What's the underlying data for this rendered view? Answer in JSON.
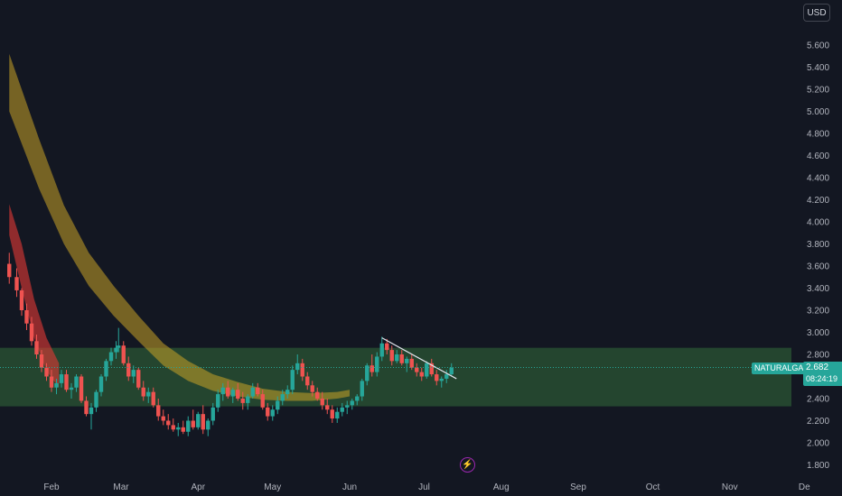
{
  "header": {
    "currency": "USD"
  },
  "symbol": {
    "name": "NATURALGAS",
    "last_price": "2.682",
    "countdown": "08:24:19"
  },
  "icons": {
    "flash": "lightning-bolt-icon"
  },
  "colors": {
    "background": "#131722",
    "up": "#26a69a",
    "down": "#ef5350",
    "zone": "#4caf50",
    "text": "#b2b5be",
    "slow_band": "#d4a020",
    "fast_band": "#e53935"
  },
  "chart_data": {
    "type": "candlestick",
    "y_ticks": [
      "1.800",
      "2.000",
      "2.200",
      "2.400",
      "2.600",
      "2.800",
      "3.000",
      "3.200",
      "3.400",
      "3.600",
      "3.800",
      "4.000",
      "4.200",
      "4.400",
      "4.600",
      "4.800",
      "5.000",
      "5.200",
      "5.400",
      "5.600"
    ],
    "x_labels": [
      {
        "label": "Feb",
        "day": 0
      },
      {
        "label": "Mar",
        "day": 28
      },
      {
        "label": "Apr",
        "day": 59
      },
      {
        "label": "May",
        "day": 89
      },
      {
        "label": "Jun",
        "day": 120
      },
      {
        "label": "Jul",
        "day": 150
      },
      {
        "label": "Aug",
        "day": 181
      },
      {
        "label": "Sep",
        "day": 212
      },
      {
        "label": "Oct",
        "day": 242
      },
      {
        "label": "Nov",
        "day": 273
      },
      {
        "label": "De",
        "day": 303
      }
    ],
    "candles": [
      [
        -17,
        3.62,
        3.72,
        3.44,
        3.5
      ],
      [
        -14,
        3.5,
        3.58,
        3.32,
        3.38
      ],
      [
        -12,
        3.38,
        3.4,
        3.15,
        3.2
      ],
      [
        -10,
        3.2,
        3.26,
        3.02,
        3.08
      ],
      [
        -8,
        3.08,
        3.14,
        2.88,
        2.92
      ],
      [
        -6,
        2.92,
        2.98,
        2.76,
        2.8
      ],
      [
        -4,
        2.8,
        2.84,
        2.64,
        2.68
      ],
      [
        -2,
        2.68,
        2.72,
        2.56,
        2.6
      ],
      [
        0,
        2.6,
        2.66,
        2.46,
        2.5
      ],
      [
        2,
        2.5,
        2.58,
        2.44,
        2.54
      ],
      [
        4,
        2.54,
        2.66,
        2.5,
        2.62
      ],
      [
        6,
        2.62,
        2.66,
        2.46,
        2.48
      ],
      [
        8,
        2.48,
        2.54,
        2.4,
        2.5
      ],
      [
        10,
        2.5,
        2.62,
        2.46,
        2.6
      ],
      [
        12,
        2.6,
        2.62,
        2.36,
        2.38
      ],
      [
        14,
        2.38,
        2.42,
        2.24,
        2.26
      ],
      [
        16,
        2.26,
        2.36,
        2.12,
        2.32
      ],
      [
        18,
        2.32,
        2.48,
        2.28,
        2.46
      ],
      [
        20,
        2.46,
        2.62,
        2.42,
        2.6
      ],
      [
        22,
        2.6,
        2.76,
        2.56,
        2.74
      ],
      [
        24,
        2.74,
        2.86,
        2.7,
        2.82
      ],
      [
        26,
        2.82,
        2.92,
        2.76,
        2.86
      ],
      [
        27,
        2.86,
        3.04,
        2.82,
        2.88
      ],
      [
        29,
        2.88,
        2.92,
        2.7,
        2.72
      ],
      [
        31,
        2.72,
        2.78,
        2.56,
        2.6
      ],
      [
        33,
        2.6,
        2.7,
        2.54,
        2.66
      ],
      [
        35,
        2.66,
        2.68,
        2.48,
        2.5
      ],
      [
        37,
        2.5,
        2.56,
        2.38,
        2.42
      ],
      [
        39,
        2.42,
        2.5,
        2.36,
        2.46
      ],
      [
        41,
        2.46,
        2.5,
        2.32,
        2.34
      ],
      [
        43,
        2.34,
        2.4,
        2.2,
        2.24
      ],
      [
        45,
        2.24,
        2.3,
        2.16,
        2.2
      ],
      [
        47,
        2.2,
        2.26,
        2.12,
        2.16
      ],
      [
        49,
        2.16,
        2.22,
        2.1,
        2.12
      ],
      [
        51,
        2.12,
        2.18,
        2.06,
        2.14
      ],
      [
        53,
        2.14,
        2.2,
        2.08,
        2.1
      ],
      [
        55,
        2.1,
        2.24,
        2.06,
        2.2
      ],
      [
        57,
        2.2,
        2.3,
        2.12,
        2.14
      ],
      [
        59,
        2.14,
        2.28,
        2.12,
        2.26
      ],
      [
        61,
        2.26,
        2.34,
        2.08,
        2.12
      ],
      [
        63,
        2.12,
        2.22,
        2.06,
        2.2
      ],
      [
        65,
        2.2,
        2.36,
        2.16,
        2.32
      ],
      [
        67,
        2.32,
        2.48,
        2.28,
        2.44
      ],
      [
        69,
        2.44,
        2.54,
        2.38,
        2.5
      ],
      [
        71,
        2.5,
        2.56,
        2.4,
        2.42
      ],
      [
        73,
        2.42,
        2.5,
        2.36,
        2.48
      ],
      [
        75,
        2.48,
        2.54,
        2.38,
        2.4
      ],
      [
        77,
        2.4,
        2.46,
        2.3,
        2.36
      ],
      [
        79,
        2.36,
        2.44,
        2.3,
        2.42
      ],
      [
        81,
        2.42,
        2.54,
        2.4,
        2.5
      ],
      [
        83,
        2.5,
        2.54,
        2.42,
        2.44
      ],
      [
        85,
        2.44,
        2.48,
        2.3,
        2.32
      ],
      [
        87,
        2.32,
        2.36,
        2.2,
        2.24
      ],
      [
        89,
        2.24,
        2.34,
        2.2,
        2.3
      ],
      [
        91,
        2.3,
        2.42,
        2.26,
        2.38
      ],
      [
        93,
        2.38,
        2.48,
        2.34,
        2.44
      ],
      [
        95,
        2.44,
        2.52,
        2.4,
        2.48
      ],
      [
        97,
        2.48,
        2.7,
        2.44,
        2.66
      ],
      [
        99,
        2.66,
        2.8,
        2.62,
        2.72
      ],
      [
        101,
        2.72,
        2.76,
        2.56,
        2.6
      ],
      [
        103,
        2.6,
        2.64,
        2.48,
        2.52
      ],
      [
        105,
        2.52,
        2.56,
        2.42,
        2.46
      ],
      [
        107,
        2.46,
        2.5,
        2.38,
        2.4
      ],
      [
        109,
        2.4,
        2.46,
        2.3,
        2.34
      ],
      [
        111,
        2.34,
        2.4,
        2.26,
        2.3
      ],
      [
        113,
        2.3,
        2.34,
        2.18,
        2.22
      ],
      [
        115,
        2.22,
        2.32,
        2.18,
        2.28
      ],
      [
        117,
        2.28,
        2.36,
        2.24,
        2.32
      ],
      [
        119,
        2.32,
        2.38,
        2.26,
        2.34
      ],
      [
        121,
        2.34,
        2.4,
        2.3,
        2.38
      ],
      [
        123,
        2.38,
        2.44,
        2.34,
        2.42
      ],
      [
        125,
        2.42,
        2.58,
        2.38,
        2.56
      ],
      [
        127,
        2.56,
        2.72,
        2.52,
        2.7
      ],
      [
        129,
        2.7,
        2.8,
        2.6,
        2.64
      ],
      [
        131,
        2.64,
        2.82,
        2.6,
        2.78
      ],
      [
        133,
        2.78,
        2.96,
        2.74,
        2.9
      ],
      [
        135,
        2.9,
        2.94,
        2.8,
        2.84
      ],
      [
        137,
        2.84,
        2.88,
        2.7,
        2.74
      ],
      [
        139,
        2.74,
        2.84,
        2.72,
        2.8
      ],
      [
        141,
        2.8,
        2.84,
        2.7,
        2.72
      ],
      [
        143,
        2.72,
        2.78,
        2.64,
        2.76
      ],
      [
        145,
        2.76,
        2.8,
        2.66,
        2.68
      ],
      [
        147,
        2.68,
        2.72,
        2.6,
        2.64
      ],
      [
        149,
        2.64,
        2.68,
        2.56,
        2.6
      ],
      [
        151,
        2.6,
        2.74,
        2.58,
        2.72
      ],
      [
        153,
        2.72,
        2.76,
        2.6,
        2.62
      ],
      [
        155,
        2.62,
        2.66,
        2.52,
        2.56
      ],
      [
        157,
        2.56,
        2.6,
        2.5,
        2.58
      ],
      [
        159,
        2.58,
        2.66,
        2.54,
        2.62
      ],
      [
        161,
        2.62,
        2.72,
        2.6,
        2.68
      ]
    ],
    "slow_band": {
      "upper": [
        [
          -17,
          5.52
        ],
        [
          -5,
          4.75
        ],
        [
          5,
          4.15
        ],
        [
          15,
          3.72
        ],
        [
          25,
          3.42
        ],
        [
          35,
          3.15
        ],
        [
          45,
          2.9
        ],
        [
          55,
          2.74
        ],
        [
          65,
          2.62
        ],
        [
          75,
          2.55
        ],
        [
          85,
          2.49
        ],
        [
          95,
          2.46
        ],
        [
          105,
          2.45
        ],
        [
          115,
          2.46
        ],
        [
          120,
          2.48
        ]
      ],
      "lower": [
        [
          -17,
          5.0
        ],
        [
          -5,
          4.3
        ],
        [
          5,
          3.8
        ],
        [
          15,
          3.42
        ],
        [
          25,
          3.15
        ],
        [
          35,
          2.92
        ],
        [
          45,
          2.7
        ],
        [
          55,
          2.56
        ],
        [
          65,
          2.47
        ],
        [
          75,
          2.42
        ],
        [
          85,
          2.39
        ],
        [
          95,
          2.38
        ],
        [
          105,
          2.38
        ],
        [
          115,
          2.4
        ],
        [
          120,
          2.42
        ]
      ]
    },
    "fast_band": {
      "upper": [
        [
          -17,
          4.16
        ],
        [
          -12,
          3.8
        ],
        [
          -7,
          3.3
        ],
        [
          -2,
          2.95
        ],
        [
          3,
          2.72
        ]
      ],
      "lower": [
        [
          -17,
          3.88
        ],
        [
          -12,
          3.4
        ],
        [
          -7,
          2.95
        ],
        [
          -2,
          2.65
        ],
        [
          3,
          2.5
        ]
      ]
    },
    "trendline": [
      [
        133,
        2.95
      ],
      [
        163,
        2.58
      ]
    ],
    "zone": [
      2.33,
      2.86
    ],
    "current_price": 2.682
  }
}
